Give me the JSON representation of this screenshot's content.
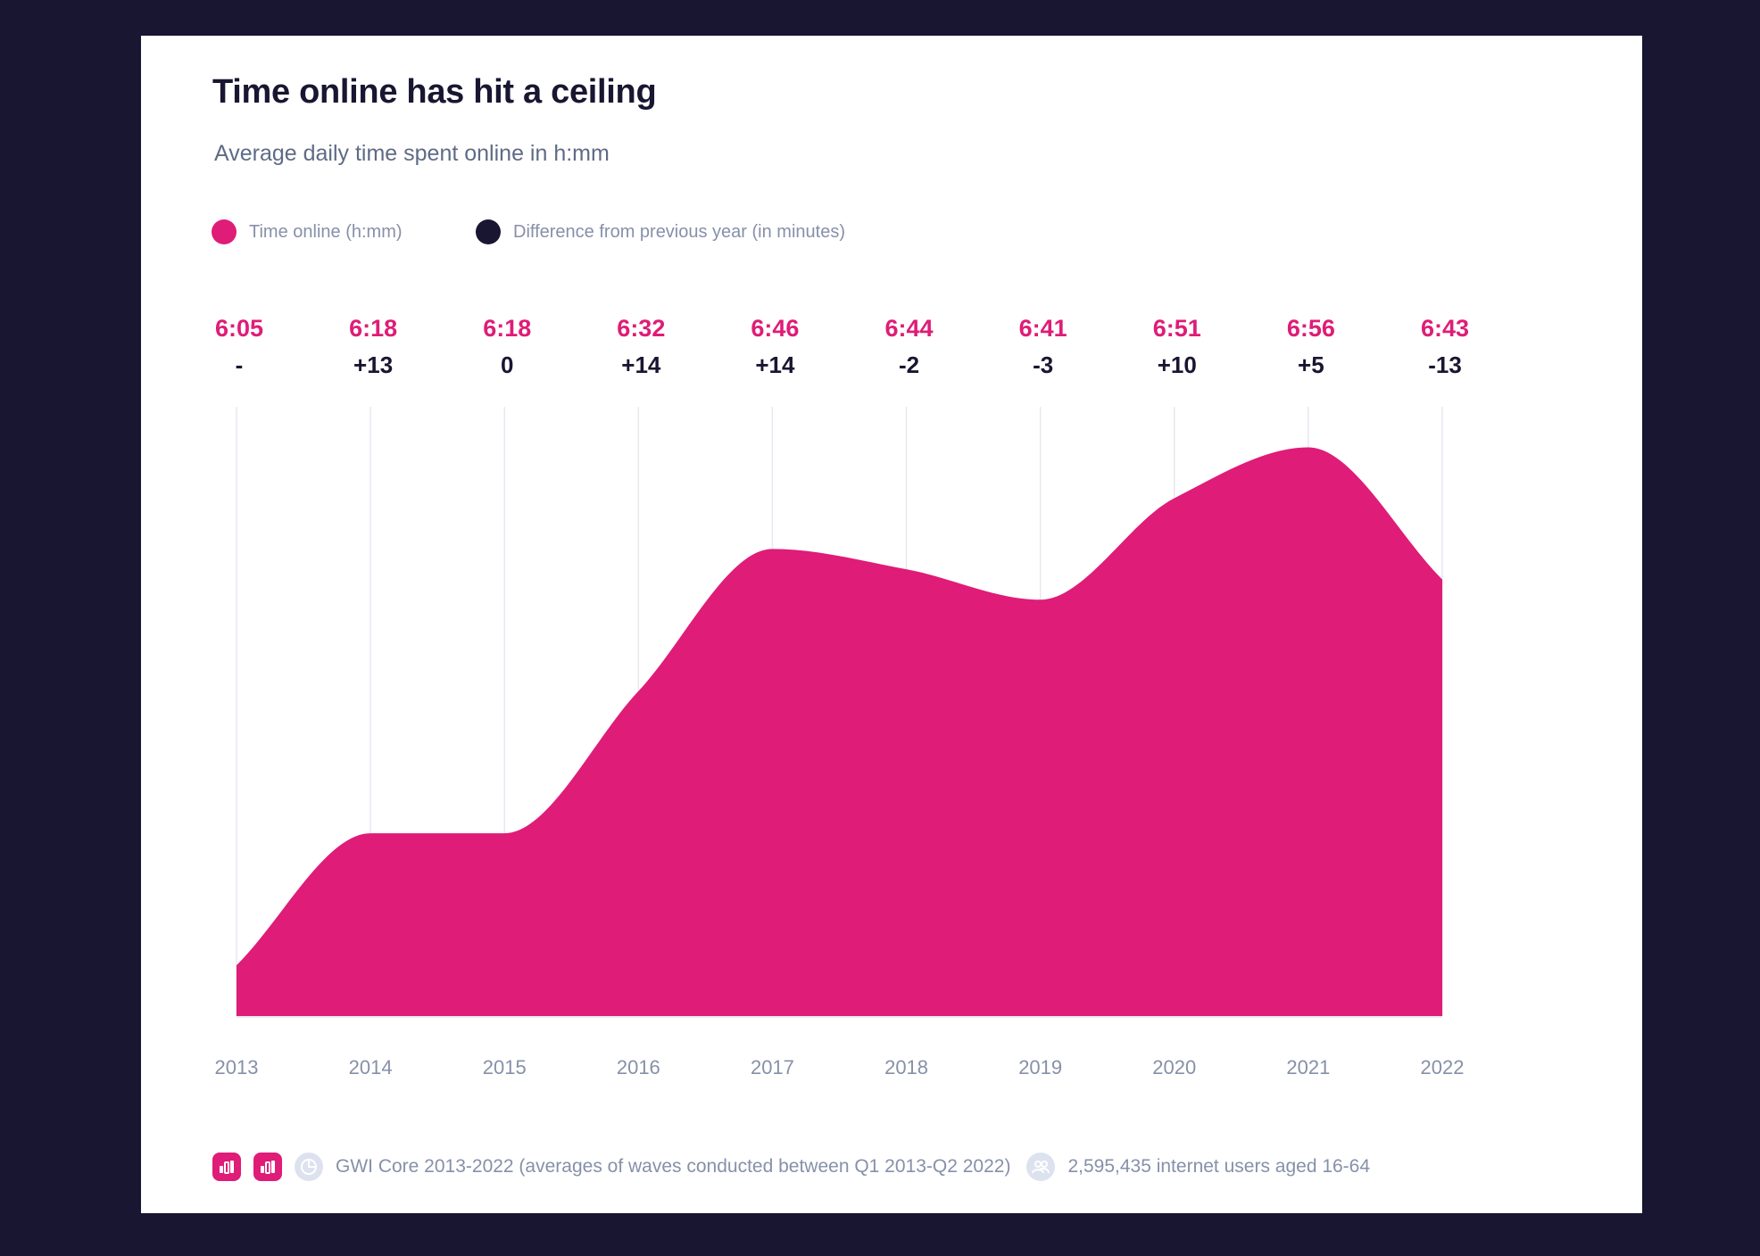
{
  "title": "Time online has hit a ceiling",
  "subtitle": "Average daily time spent online in h:mm",
  "legend": [
    {
      "label": "Time online (h:mm)",
      "color": "#df1c77"
    },
    {
      "label": "Difference from previous year (in minutes)",
      "color": "#181631"
    }
  ],
  "footer": {
    "source": "GWI Core 2013-2022 (averages of waves conducted between Q1 2013-Q2 2022)",
    "sample": "2,595,435 internet users aged 16-64",
    "icons": [
      "bar-chart-icon",
      "bar-chart-icon",
      "pie-chart-icon",
      "users-icon"
    ]
  },
  "colors": {
    "accent": "#df1c77",
    "dark": "#181631",
    "muted": "#8690a8",
    "grid": "#e6e9f0"
  },
  "chart_data": {
    "type": "area",
    "title": "Time online has hit a ceiling",
    "subtitle": "Average daily time spent online in h:mm",
    "xlabel": "",
    "ylabel": "",
    "categories": [
      "2013",
      "2014",
      "2015",
      "2016",
      "2017",
      "2018",
      "2019",
      "2020",
      "2021",
      "2022"
    ],
    "series": [
      {
        "name": "Time online (h:mm)",
        "labels": [
          "6:05",
          "6:18",
          "6:18",
          "6:32",
          "6:46",
          "6:44",
          "6:41",
          "6:51",
          "6:56",
          "6:43"
        ],
        "minutes": [
          365,
          378,
          378,
          392,
          406,
          404,
          401,
          411,
          416,
          403
        ]
      },
      {
        "name": "Difference from previous year (in minutes)",
        "labels": [
          "-",
          "+13",
          "0",
          "+14",
          "+14",
          "-2",
          "-3",
          "+10",
          "+5",
          "-13"
        ]
      }
    ],
    "ylim": [
      360,
      420
    ],
    "grid": true
  }
}
